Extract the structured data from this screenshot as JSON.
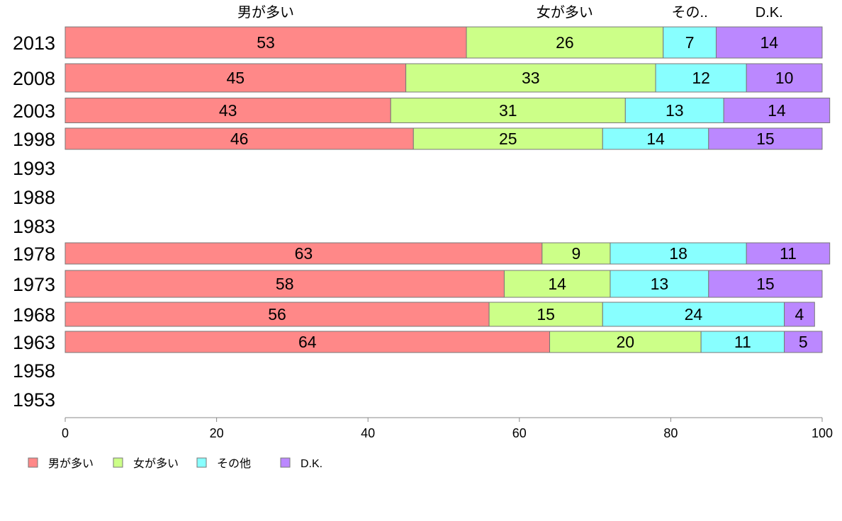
{
  "chart_data": {
    "type": "bar",
    "orientation": "horizontal",
    "stacked": true,
    "categories": [
      "2013",
      "2008",
      "2003",
      "1998",
      "1993",
      "1988",
      "1983",
      "1978",
      "1973",
      "1968",
      "1963",
      "1958",
      "1953"
    ],
    "series": [
      {
        "name": "男が多い",
        "color": "#ff8888",
        "values": [
          53,
          45,
          43,
          46,
          null,
          null,
          null,
          63,
          58,
          56,
          64,
          null,
          null
        ]
      },
      {
        "name": "女が多い",
        "color": "#ccff88",
        "values": [
          26,
          33,
          31,
          25,
          null,
          null,
          null,
          9,
          14,
          15,
          20,
          null,
          null
        ]
      },
      {
        "name": "その他",
        "color": "#88ffff",
        "values": [
          7,
          12,
          13,
          14,
          null,
          null,
          null,
          18,
          13,
          24,
          11,
          null,
          null
        ]
      },
      {
        "name": "D.K.",
        "color": "#bb88ff",
        "values": [
          14,
          10,
          14,
          15,
          null,
          null,
          null,
          11,
          15,
          4,
          5,
          null,
          null
        ]
      }
    ],
    "top_labels": [
      "男が多い",
      "女が多い",
      "その..",
      "D.K."
    ],
    "xlim": [
      0,
      100
    ],
    "xticks": [
      "0",
      "20",
      "40",
      "60",
      "80",
      "100"
    ],
    "grid": false,
    "legend_position": "bottom-left"
  }
}
